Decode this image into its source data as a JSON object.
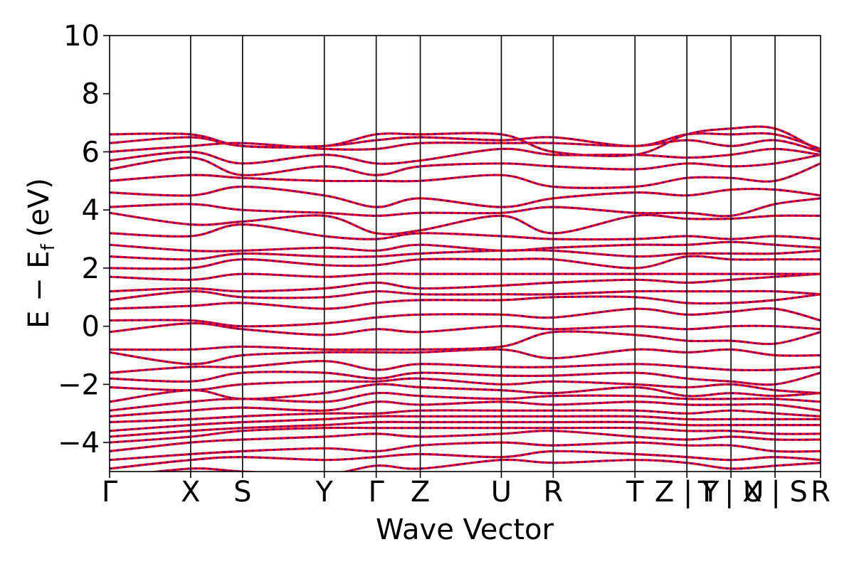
{
  "chart_data": {
    "type": "line",
    "title": "",
    "xlabel": "Wave Vector",
    "ylabel": "E − E",
    "ylabel_subscript": "f",
    "ylabel_unit": "(eV)",
    "ylim": [
      -5,
      10
    ],
    "y_ticks": [
      10,
      8,
      6,
      4,
      2,
      0,
      -2,
      -4
    ],
    "y_tick_labels": [
      "10",
      "8",
      "6",
      "4",
      "2",
      "0",
      "−2",
      "−4"
    ],
    "x_tick_labels": [
      "Γ",
      "X",
      "S",
      "Y",
      "Γ",
      "Z",
      "U",
      "R",
      "T",
      "Z | Y",
      "T | U",
      "X | S",
      "R"
    ],
    "k_points": [
      0,
      1.14,
      1.87,
      3.02,
      3.75,
      4.37,
      5.51,
      6.24,
      7.39,
      8.12,
      8.74,
      9.36,
      10.0
    ],
    "grid": "vertical lines at high-symmetry points",
    "series": [
      {
        "color": "#ff0000",
        "style": "solid"
      },
      {
        "color": "#0000ff",
        "style": "dashed"
      }
    ],
    "band_anchor_energies": [
      [
        -5.2,
        -4.9,
        -5.0,
        -5.1,
        -4.8,
        -4.9,
        -4.6,
        -4.7,
        -4.6,
        -4.7,
        -4.9,
        -4.8,
        -4.7
      ],
      [
        -4.9,
        -4.6,
        -4.5,
        -4.6,
        -4.5,
        -4.4,
        -4.5,
        -4.3,
        -4.4,
        -4.5,
        -4.6,
        -4.5,
        -4.6
      ],
      [
        -4.6,
        -4.4,
        -4.3,
        -4.2,
        -4.3,
        -4.1,
        -4.0,
        -4.1,
        -4.0,
        -4.1,
        -4.1,
        -4.3,
        -4.3
      ],
      [
        -4.3,
        -4.0,
        -3.9,
        -3.8,
        -3.7,
        -3.8,
        -3.7,
        -3.6,
        -3.8,
        -3.9,
        -3.8,
        -3.9,
        -3.9
      ],
      [
        -4.0,
        -3.8,
        -3.6,
        -3.5,
        -3.5,
        -3.5,
        -3.5,
        -3.5,
        -3.5,
        -3.6,
        -3.6,
        -3.7,
        -3.7
      ],
      [
        -3.8,
        -3.6,
        -3.5,
        -3.4,
        -3.3,
        -3.3,
        -3.3,
        -3.3,
        -3.3,
        -3.4,
        -3.4,
        -3.4,
        -3.4
      ],
      [
        -3.6,
        -3.4,
        -3.3,
        -3.2,
        -3.1,
        -3.1,
        -3.1,
        -3.1,
        -3.1,
        -3.2,
        -3.2,
        -3.2,
        -3.2
      ],
      [
        -3.3,
        -3.2,
        -3.1,
        -3.0,
        -3.0,
        -2.9,
        -2.9,
        -2.9,
        -2.9,
        -3.0,
        -2.9,
        -3.0,
        -3.1
      ],
      [
        -3.1,
        -2.9,
        -2.8,
        -2.9,
        -2.6,
        -2.7,
        -2.6,
        -2.7,
        -2.6,
        -2.7,
        -2.7,
        -2.7,
        -2.9
      ],
      [
        -2.9,
        -2.6,
        -2.5,
        -2.6,
        -2.3,
        -2.4,
        -2.5,
        -2.4,
        -2.4,
        -2.5,
        -2.5,
        -2.5,
        -2.6
      ],
      [
        -2.6,
        -2.2,
        -2.5,
        -2.3,
        -2.0,
        -2.1,
        -2.2,
        -2.3,
        -2.1,
        -2.4,
        -2.3,
        -2.4,
        -2.3
      ],
      [
        -2.1,
        -2.2,
        -2.0,
        -1.9,
        -1.9,
        -1.8,
        -2.0,
        -1.9,
        -2.0,
        -2.1,
        -2.0,
        -2.2,
        -2.3
      ],
      [
        -1.8,
        -1.9,
        -1.6,
        -1.6,
        -1.8,
        -1.6,
        -1.7,
        -1.7,
        -1.6,
        -1.8,
        -1.9,
        -2.0,
        -1.6
      ],
      [
        -1.6,
        -1.4,
        -1.4,
        -1.2,
        -1.5,
        -1.3,
        -1.4,
        -1.4,
        -1.3,
        -1.4,
        -1.5,
        -1.5,
        -1.4
      ],
      [
        -0.9,
        -1.3,
        -1.0,
        -0.9,
        -0.9,
        -0.9,
        -0.8,
        -1.1,
        -0.8,
        -0.9,
        -0.8,
        -1.0,
        -1.0
      ],
      [
        -0.8,
        -0.8,
        -0.7,
        -0.8,
        -0.8,
        -0.8,
        -0.7,
        -0.2,
        -0.3,
        -0.5,
        -0.5,
        -0.6,
        -0.2
      ],
      [
        -0.2,
        0.1,
        -0.1,
        -0.3,
        -0.1,
        -0.2,
        0.0,
        -0.1,
        0.0,
        -0.1,
        0.0,
        0.0,
        -0.1
      ],
      [
        0.2,
        0.2,
        0.0,
        0.1,
        0.3,
        0.4,
        0.4,
        0.3,
        0.6,
        0.4,
        0.5,
        0.6,
        0.2
      ],
      [
        0.6,
        0.7,
        0.8,
        0.6,
        0.8,
        0.9,
        0.9,
        1.0,
        1.0,
        0.8,
        0.8,
        0.9,
        1.1
      ],
      [
        0.9,
        1.2,
        1.0,
        1.0,
        1.2,
        1.1,
        1.1,
        1.1,
        1.2,
        1.2,
        1.2,
        1.2,
        1.1
      ],
      [
        1.2,
        1.3,
        1.2,
        1.3,
        1.5,
        1.3,
        1.4,
        1.5,
        1.6,
        1.5,
        1.6,
        1.7,
        1.8
      ],
      [
        1.7,
        1.6,
        1.8,
        1.7,
        1.8,
        1.8,
        1.8,
        1.8,
        1.8,
        1.8,
        1.8,
        1.8,
        1.8
      ],
      [
        2.0,
        2.0,
        2.3,
        2.1,
        2.1,
        2.3,
        2.3,
        2.3,
        2.0,
        2.4,
        2.3,
        2.3,
        2.3
      ],
      [
        2.4,
        2.3,
        2.5,
        2.4,
        2.4,
        2.5,
        2.6,
        2.6,
        2.4,
        2.5,
        2.5,
        2.5,
        2.6
      ],
      [
        2.8,
        2.6,
        2.6,
        2.7,
        2.6,
        2.8,
        2.6,
        2.7,
        2.8,
        2.8,
        2.9,
        2.8,
        2.7
      ],
      [
        3.2,
        3.1,
        3.5,
        3.1,
        3.0,
        3.2,
        3.1,
        3.0,
        3.0,
        3.1,
        3.0,
        3.1,
        3.0
      ],
      [
        3.9,
        3.5,
        3.6,
        3.8,
        3.2,
        3.3,
        3.8,
        3.2,
        3.8,
        3.7,
        3.7,
        3.8,
        3.8
      ],
      [
        4.1,
        4.2,
        4.0,
        3.9,
        3.8,
        3.9,
        3.9,
        4.1,
        3.9,
        3.9,
        3.8,
        4.2,
        4.4
      ],
      [
        4.6,
        4.5,
        4.8,
        4.5,
        4.1,
        4.4,
        4.1,
        4.4,
        4.6,
        4.5,
        4.7,
        4.7,
        4.5
      ],
      [
        5.0,
        5.2,
        5.1,
        5.0,
        5.0,
        5.0,
        5.2,
        4.8,
        4.8,
        5.1,
        5.1,
        5.0,
        5.6
      ],
      [
        5.4,
        5.8,
        5.2,
        5.5,
        5.2,
        5.5,
        5.6,
        5.5,
        5.4,
        5.6,
        5.5,
        5.6,
        5.9
      ],
      [
        5.7,
        6.0,
        5.6,
        5.9,
        5.6,
        5.7,
        6.1,
        5.9,
        5.9,
        5.8,
        5.9,
        6.1,
        5.9
      ],
      [
        6.0,
        6.2,
        6.3,
        6.1,
        6.1,
        6.3,
        6.3,
        6.3,
        6.2,
        6.4,
        6.2,
        6.4,
        6.0
      ],
      [
        6.3,
        6.5,
        6.2,
        6.2,
        6.4,
        6.5,
        6.4,
        6.5,
        6.2,
        6.6,
        6.6,
        6.6,
        6.1
      ],
      [
        6.6,
        6.6,
        6.2,
        6.2,
        6.6,
        6.6,
        6.6,
        6.0,
        5.9,
        6.6,
        6.8,
        6.8,
        6.0
      ]
    ]
  }
}
